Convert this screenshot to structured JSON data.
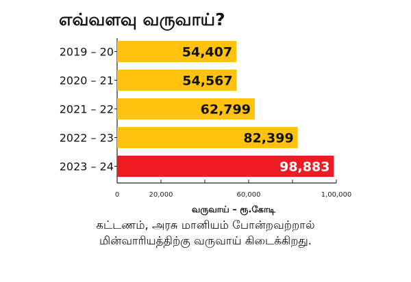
{
  "chart_data": {
    "type": "bar",
    "orientation": "horizontal",
    "title": "எவ்வளவு வருவாய்?",
    "categories": [
      "2019 – 20",
      "2020 – 21",
      "2021 – 22",
      "2022 – 23",
      "2023 – 24"
    ],
    "values": [
      54407,
      54567,
      62799,
      82399,
      98883
    ],
    "value_labels": [
      "54,407",
      "54,567",
      "62,799",
      "82,399",
      "98,883"
    ],
    "colors": [
      "#FFC20E",
      "#FFC20E",
      "#FFC20E",
      "#FFC20E",
      "#ED1C24"
    ],
    "xlabel": "வருவாய் – ரூ.கோடி",
    "ylabel": "",
    "xlim": [
      0,
      100000
    ],
    "xticks": [
      0,
      20000,
      40000,
      60000,
      80000,
      100000
    ],
    "xtick_labels": [
      {
        "value": 0,
        "label": "0"
      },
      {
        "value": 20000,
        "label": "20,000"
      },
      {
        "value": 60000,
        "label": "60,000"
      },
      {
        "value": 100000,
        "label": "1,00,000"
      }
    ],
    "grid": false
  },
  "note_lines": [
    "கட்டணம், அரசு மானியம் போன்றவற்றால்",
    "மின்வாரியத்திற்கு வருவாய் கிடைக்கிறது."
  ]
}
